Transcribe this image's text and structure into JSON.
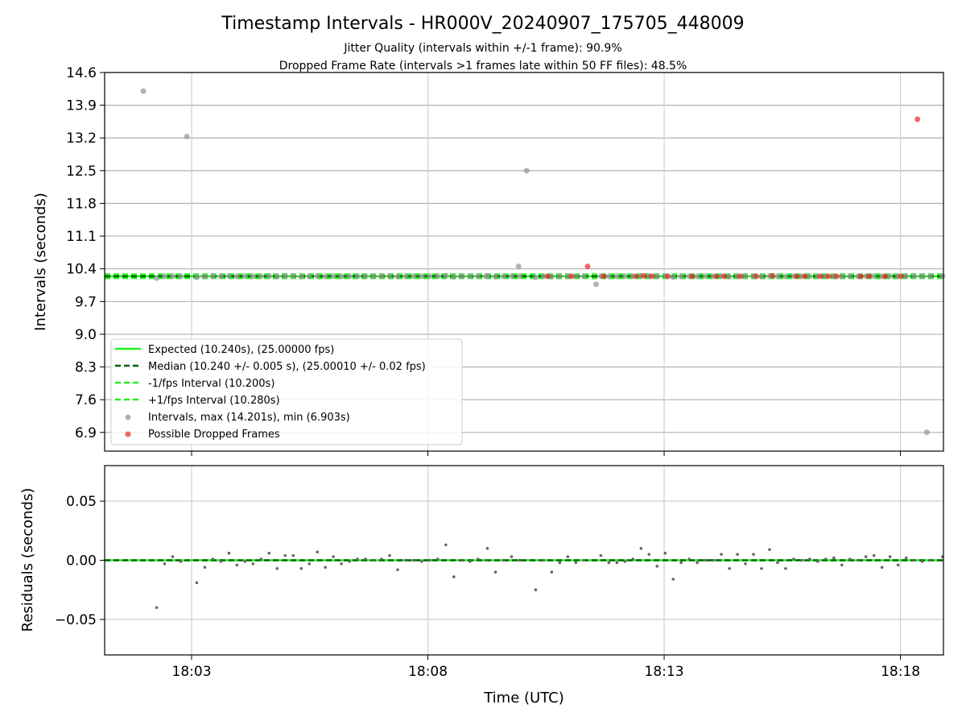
{
  "chart_data": [
    {
      "type": "scatter",
      "title": "Timestamp Intervals - HR000V_20240907_175705_448009",
      "subtitle_1": "Jitter Quality (intervals within +/-1 frame): 90.9%",
      "subtitle_2": "Dropped Frame Rate (intervals >1 frames late within 50 FF files): 48.5%",
      "ylabel": "Intervals (seconds)",
      "xlabel": "",
      "ylim": [
        6.5,
        14.6
      ],
      "xlim": [
        0,
        177.5
      ],
      "yticks": [
        "6.9",
        "7.6",
        "8.3",
        "9.0",
        "9.7",
        "10.4",
        "11.1",
        "11.8",
        "12.5",
        "13.2",
        "13.9",
        "14.6"
      ],
      "grid": true,
      "legend_position": "lower-left",
      "colors": {
        "expected": "#22ee22",
        "median": "#006400",
        "fps_band": "#22ee22",
        "intervals": "#999999",
        "dropped": "#ee3333"
      },
      "lines": {
        "expected": 10.24,
        "median": 10.24,
        "minus_fps": 10.2,
        "plus_fps": 10.28
      },
      "legend": [
        "Expected (10.240s), (25.00000 fps)",
        "Median (10.240 +/- 0.005 s), (25.00010 +/- 0.02 fps)",
        "-1/fps Interval (10.200s)",
        "+1/fps Interval (10.280s)",
        "Intervals, max (14.201s), min (6.903s)",
        "Possible Dropped Frames"
      ],
      "outliers": [
        {
          "t": 8.2,
          "v": 14.2
        },
        {
          "t": 17.4,
          "v": 13.23
        },
        {
          "t": 89.3,
          "v": 12.5
        },
        {
          "t": 87.6,
          "v": 10.45
        },
        {
          "t": 104.0,
          "v": 10.07
        },
        {
          "t": 174.0,
          "v": 6.903
        }
      ],
      "dropped": [
        {
          "t": 93.7,
          "v": 10.24
        },
        {
          "t": 98.8,
          "v": 10.24
        },
        {
          "t": 102.2,
          "v": 10.45
        },
        {
          "t": 105.6,
          "v": 10.24
        },
        {
          "t": 112.4,
          "v": 10.24
        },
        {
          "t": 114.1,
          "v": 10.25
        },
        {
          "t": 115.8,
          "v": 10.24
        },
        {
          "t": 119.2,
          "v": 10.24
        },
        {
          "t": 124.3,
          "v": 10.24
        },
        {
          "t": 129.4,
          "v": 10.24
        },
        {
          "t": 131.1,
          "v": 10.24
        },
        {
          "t": 134.5,
          "v": 10.24
        },
        {
          "t": 137.9,
          "v": 10.24
        },
        {
          "t": 141.3,
          "v": 10.25
        },
        {
          "t": 146.4,
          "v": 10.24
        },
        {
          "t": 148.1,
          "v": 10.24
        },
        {
          "t": 151.5,
          "v": 10.24
        },
        {
          "t": 153.2,
          "v": 10.24
        },
        {
          "t": 154.9,
          "v": 10.24
        },
        {
          "t": 160.0,
          "v": 10.24
        },
        {
          "t": 161.7,
          "v": 10.24
        },
        {
          "t": 165.1,
          "v": 10.24
        },
        {
          "t": 168.5,
          "v": 10.24
        },
        {
          "t": 172.0,
          "v": 13.6
        }
      ]
    },
    {
      "type": "scatter",
      "ylabel": "Residuals (seconds)",
      "xlabel": "Time (UTC)",
      "ylim": [
        -0.08,
        0.08
      ],
      "yticks": [
        "−0.05",
        "0.00",
        "0.05"
      ],
      "ytick_values": [
        -0.05,
        0.0,
        0.05
      ],
      "xlim": [
        0,
        177.5
      ],
      "xticks": [
        "18:03",
        "18:08",
        "18:13",
        "18:18"
      ],
      "xtick_positions": [
        18.4,
        68.4,
        118.4,
        168.4
      ],
      "grid": true,
      "median_line": 0.0,
      "colors": {
        "points": "#666666",
        "line": "#006400"
      },
      "residuals": [
        {
          "t": 11.0,
          "v": -0.04
        },
        {
          "t": 12.7,
          "v": -0.003
        },
        {
          "t": 14.4,
          "v": 0.003
        },
        {
          "t": 16.1,
          "v": -0.001
        },
        {
          "t": 19.5,
          "v": -0.019
        },
        {
          "t": 21.2,
          "v": -0.006
        },
        {
          "t": 22.9,
          "v": 0.001
        },
        {
          "t": 24.6,
          "v": -0.001
        },
        {
          "t": 26.3,
          "v": 0.006
        },
        {
          "t": 28.0,
          "v": -0.004
        },
        {
          "t": 29.7,
          "v": -0.001
        },
        {
          "t": 31.4,
          "v": -0.003
        },
        {
          "t": 33.1,
          "v": 0.001
        },
        {
          "t": 34.8,
          "v": 0.006
        },
        {
          "t": 36.5,
          "v": -0.007
        },
        {
          "t": 38.2,
          "v": 0.004
        },
        {
          "t": 39.9,
          "v": 0.004
        },
        {
          "t": 41.6,
          "v": -0.007
        },
        {
          "t": 43.3,
          "v": -0.003
        },
        {
          "t": 45.0,
          "v": 0.007
        },
        {
          "t": 46.7,
          "v": -0.006
        },
        {
          "t": 48.4,
          "v": 0.003
        },
        {
          "t": 50.1,
          "v": -0.003
        },
        {
          "t": 51.8,
          "v": -0.001
        },
        {
          "t": 53.5,
          "v": 0.001
        },
        {
          "t": 55.2,
          "v": 0.001
        },
        {
          "t": 56.9,
          "v": 0.0
        },
        {
          "t": 58.6,
          "v": 0.001
        },
        {
          "t": 60.3,
          "v": 0.004
        },
        {
          "t": 62.0,
          "v": -0.008
        },
        {
          "t": 63.7,
          "v": 0.0
        },
        {
          "t": 65.4,
          "v": 0.0
        },
        {
          "t": 67.1,
          "v": -0.001
        },
        {
          "t": 68.8,
          "v": 0.0
        },
        {
          "t": 70.5,
          "v": 0.001
        },
        {
          "t": 72.2,
          "v": 0.013
        },
        {
          "t": 73.9,
          "v": -0.014
        },
        {
          "t": 75.6,
          "v": 0.0
        },
        {
          "t": 77.3,
          "v": -0.001
        },
        {
          "t": 79.0,
          "v": 0.001
        },
        {
          "t": 80.7,
          "v": 0.0
        },
        {
          "t": 81.0,
          "v": 0.01
        },
        {
          "t": 82.7,
          "v": -0.01
        },
        {
          "t": 84.4,
          "v": 0.0
        },
        {
          "t": 86.1,
          "v": 0.003
        },
        {
          "t": 87.8,
          "v": 0.0
        },
        {
          "t": 91.2,
          "v": -0.025
        },
        {
          "t": 92.9,
          "v": 0.0
        },
        {
          "t": 94.6,
          "v": -0.01
        },
        {
          "t": 96.3,
          "v": -0.002
        },
        {
          "t": 98.0,
          "v": 0.003
        },
        {
          "t": 99.7,
          "v": -0.002
        },
        {
          "t": 101.4,
          "v": 0.0
        },
        {
          "t": 105.0,
          "v": 0.004
        },
        {
          "t": 106.7,
          "v": -0.002
        },
        {
          "t": 108.4,
          "v": -0.002
        },
        {
          "t": 110.1,
          "v": -0.001
        },
        {
          "t": 111.8,
          "v": 0.001
        },
        {
          "t": 113.5,
          "v": 0.01
        },
        {
          "t": 115.2,
          "v": 0.005
        },
        {
          "t": 116.9,
          "v": -0.005
        },
        {
          "t": 118.6,
          "v": 0.006
        },
        {
          "t": 120.3,
          "v": -0.016
        },
        {
          "t": 122.0,
          "v": -0.002
        },
        {
          "t": 123.7,
          "v": 0.001
        },
        {
          "t": 125.4,
          "v": -0.002
        },
        {
          "t": 127.1,
          "v": 0.0
        },
        {
          "t": 128.8,
          "v": 0.0
        },
        {
          "t": 130.5,
          "v": 0.005
        },
        {
          "t": 132.2,
          "v": -0.007
        },
        {
          "t": 133.9,
          "v": 0.005
        },
        {
          "t": 135.6,
          "v": -0.003
        },
        {
          "t": 137.3,
          "v": 0.005
        },
        {
          "t": 139.0,
          "v": -0.007
        },
        {
          "t": 140.7,
          "v": 0.009
        },
        {
          "t": 142.4,
          "v": -0.002
        },
        {
          "t": 144.1,
          "v": -0.007
        },
        {
          "t": 145.8,
          "v": 0.001
        },
        {
          "t": 147.5,
          "v": 0.0
        },
        {
          "t": 149.2,
          "v": 0.001
        },
        {
          "t": 150.9,
          "v": -0.001
        },
        {
          "t": 152.6,
          "v": 0.001
        },
        {
          "t": 154.3,
          "v": 0.002
        },
        {
          "t": 156.0,
          "v": -0.004
        },
        {
          "t": 157.7,
          "v": 0.001
        },
        {
          "t": 159.4,
          "v": 0.0
        },
        {
          "t": 161.1,
          "v": 0.003
        },
        {
          "t": 162.8,
          "v": 0.004
        },
        {
          "t": 164.5,
          "v": -0.006
        },
        {
          "t": 166.2,
          "v": 0.003
        },
        {
          "t": 167.9,
          "v": -0.004
        },
        {
          "t": 169.6,
          "v": 0.002
        },
        {
          "t": 171.3,
          "v": 0.0
        },
        {
          "t": 173.0,
          "v": -0.001
        },
        {
          "t": 174.7,
          "v": 0.0
        },
        {
          "t": 177.3,
          "v": 0.003
        }
      ]
    }
  ]
}
